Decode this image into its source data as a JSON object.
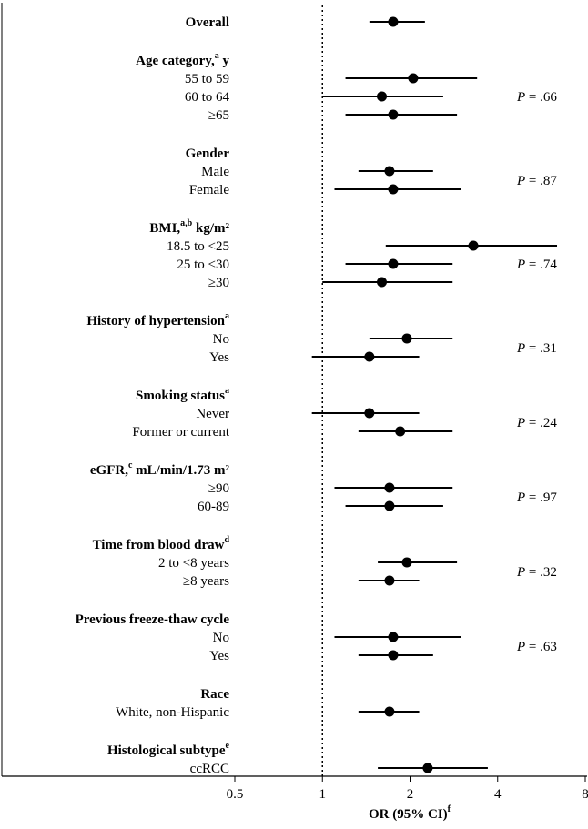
{
  "chart_data": {
    "type": "forest",
    "x_scale": "log2",
    "xlim": [
      0.5,
      8
    ],
    "reference_line": 1,
    "x_ticks": [
      "0.5",
      "1",
      "2",
      "4",
      "8"
    ],
    "xlabel": "OR (95% CI)",
    "xlabel_sup": "f",
    "groups": [
      {
        "header": "Overall",
        "header_sup": "",
        "header_suffix": "",
        "p_value": "",
        "rows": [
          {
            "label": "",
            "or": 1.75,
            "lo": 1.45,
            "hi": 2.25
          }
        ]
      },
      {
        "header": "Age category,",
        "header_sup": "a",
        "header_suffix": "y",
        "p_value": ".66",
        "rows": [
          {
            "label": "55 to 59",
            "or": 2.05,
            "lo": 1.2,
            "hi": 3.4
          },
          {
            "label": "60 to 64",
            "or": 1.6,
            "lo": 1.0,
            "hi": 2.6
          },
          {
            "label": "≥65",
            "or": 1.75,
            "lo": 1.2,
            "hi": 2.9
          }
        ]
      },
      {
        "header": "Gender",
        "header_sup": "",
        "header_suffix": "",
        "p_value": ".87",
        "rows": [
          {
            "label": "Male",
            "or": 1.7,
            "lo": 1.33,
            "hi": 2.4
          },
          {
            "label": "Female",
            "or": 1.75,
            "lo": 1.1,
            "hi": 3.0
          }
        ]
      },
      {
        "header": "BMI,",
        "header_sup": "a,b",
        "header_suffix": "kg/m²",
        "p_value": ".74",
        "rows": [
          {
            "label": "18.5 to <25",
            "or": 3.3,
            "lo": 1.65,
            "hi": 6.4
          },
          {
            "label": "25 to <30",
            "or": 1.75,
            "lo": 1.2,
            "hi": 2.8
          },
          {
            "label": "≥30",
            "or": 1.6,
            "lo": 1.0,
            "hi": 2.8
          }
        ]
      },
      {
        "header": "History of hypertension",
        "header_sup": "a",
        "header_suffix": "",
        "p_value": ".31",
        "rows": [
          {
            "label": "No",
            "or": 1.95,
            "lo": 1.45,
            "hi": 2.8
          },
          {
            "label": "Yes",
            "or": 1.45,
            "lo": 0.92,
            "hi": 2.15
          }
        ]
      },
      {
        "header": "Smoking status",
        "header_sup": "a",
        "header_suffix": "",
        "p_value": ".24",
        "rows": [
          {
            "label": "Never",
            "or": 1.45,
            "lo": 0.92,
            "hi": 2.15
          },
          {
            "label": "Former or current",
            "or": 1.85,
            "lo": 1.33,
            "hi": 2.8
          }
        ]
      },
      {
        "header": "eGFR,",
        "header_sup": "c",
        "header_suffix": "mL/min/1.73 m²",
        "p_value": ".97",
        "rows": [
          {
            "label": "≥90",
            "or": 1.7,
            "lo": 1.1,
            "hi": 2.8
          },
          {
            "label": "60-89",
            "or": 1.7,
            "lo": 1.2,
            "hi": 2.6
          }
        ]
      },
      {
        "header": "Time from blood draw",
        "header_sup": "d",
        "header_suffix": "",
        "p_value": ".32",
        "rows": [
          {
            "label": "2 to <8 years",
            "or": 1.95,
            "lo": 1.55,
            "hi": 2.9
          },
          {
            "label": "≥8 years",
            "or": 1.7,
            "lo": 1.33,
            "hi": 2.15
          }
        ]
      },
      {
        "header": "Previous freeze-thaw cycle",
        "header_sup": "",
        "header_suffix": "",
        "p_value": ".63",
        "rows": [
          {
            "label": "No",
            "or": 1.75,
            "lo": 1.1,
            "hi": 3.0
          },
          {
            "label": "Yes",
            "or": 1.75,
            "lo": 1.33,
            "hi": 2.4
          }
        ]
      },
      {
        "header": "Race",
        "header_sup": "",
        "header_suffix": "",
        "p_value": "",
        "rows": [
          {
            "label": "White, non-Hispanic",
            "or": 1.7,
            "lo": 1.33,
            "hi": 2.15
          }
        ]
      },
      {
        "header": "Histological subtype",
        "header_sup": "e",
        "header_suffix": "",
        "p_value": "",
        "rows": [
          {
            "label": "ccRCC",
            "or": 2.3,
            "lo": 1.55,
            "hi": 3.7
          }
        ]
      }
    ]
  }
}
